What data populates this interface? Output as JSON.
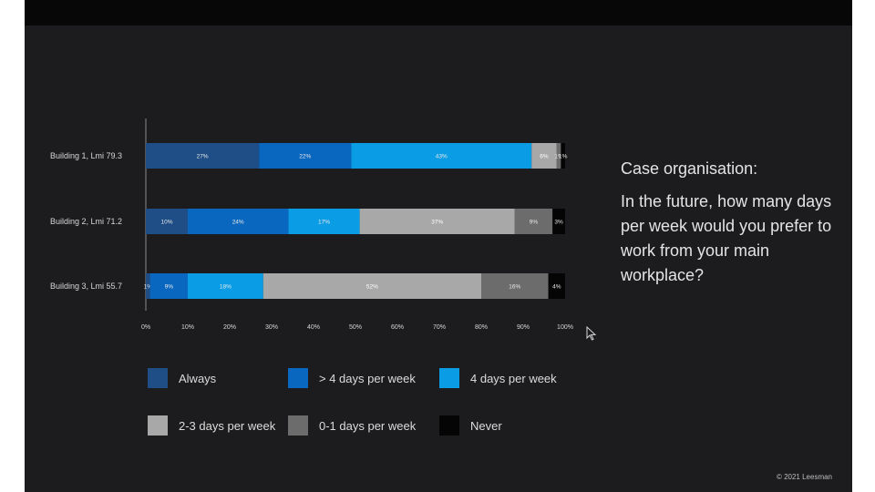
{
  "chart_data": {
    "type": "bar",
    "orientation": "horizontal",
    "stacked": true,
    "categories": [
      "Building 1, Lmi 79.3",
      "Building 2, Lmi 71.2",
      "Building 3, Lmi 55.7"
    ],
    "series": [
      {
        "name": "Always",
        "color": "#1f4e86",
        "values": [
          27,
          10,
          1
        ],
        "labels": [
          "27%",
          "10%",
          "1%"
        ]
      },
      {
        "name": "> 4 days per week",
        "color": "#0a67c0",
        "values": [
          22,
          24,
          9
        ],
        "labels": [
          "22%",
          "24%",
          "9%"
        ]
      },
      {
        "name": "4 days per week",
        "color": "#0a9de6",
        "values": [
          43,
          17,
          18
        ],
        "labels": [
          "43%",
          "17%",
          "18%"
        ]
      },
      {
        "name": "2-3 days per week",
        "color": "#a8a8a8",
        "values": [
          6,
          37,
          52
        ],
        "labels": [
          "6%",
          "37%",
          "52%"
        ]
      },
      {
        "name": "0-1 days per week",
        "color": "#6c6c6c",
        "values": [
          1,
          9,
          16
        ],
        "labels": [
          "1%",
          "9%",
          "16%"
        ]
      },
      {
        "name": "Never",
        "color": "#050505",
        "values": [
          1,
          3,
          4
        ],
        "labels": [
          "1%",
          "3%",
          "4%"
        ]
      }
    ],
    "xlim": [
      0,
      100
    ],
    "xticks": [
      "0%",
      "10%",
      "20%",
      "30%",
      "40%",
      "50%",
      "60%",
      "70%",
      "80%",
      "90%",
      "100%"
    ],
    "xlabel": "",
    "ylabel": "",
    "grid": false,
    "legend_position": "bottom"
  },
  "side_text": {
    "heading": "Case organisation:",
    "question": "In the future, how many days per week would you prefer to work from your main workplace?"
  },
  "footer": {
    "copyright": "© 2021 Leesman"
  }
}
